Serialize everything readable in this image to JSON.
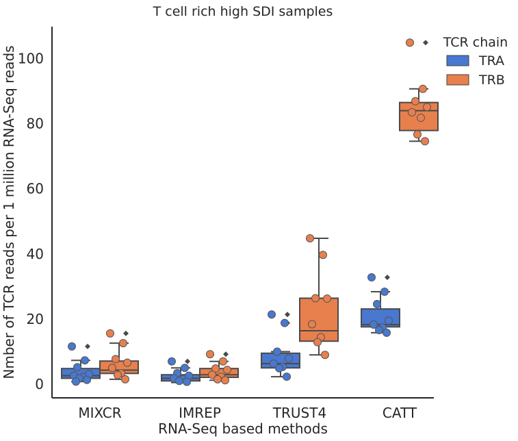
{
  "chart_data": {
    "type": "box",
    "title": "T cell rich high SDI samples",
    "xlabel": "RNA-Seq based methods",
    "ylabel": "Nmber of TCR reads per 1 million RNA-Seq reads",
    "categories": [
      "MIXCR",
      "IMREP",
      "TRUST4",
      "CATT"
    ],
    "ylim": [
      -4,
      110
    ],
    "yticks": [
      0,
      20,
      40,
      60,
      80,
      100
    ],
    "grid": false,
    "legend": {
      "title": "TCR chain",
      "position": "top-right outside"
    },
    "series": [
      {
        "name": "TRA",
        "color": "#4878cf",
        "boxes": [
          {
            "q1": 1.8,
            "median": 2.6,
            "q3": 4.8,
            "whisker_low": 0.8,
            "whisker_high": 7.3,
            "outliers": [
              11.6
            ]
          },
          {
            "q1": 1.0,
            "median": 1.8,
            "q3": 2.9,
            "whisker_low": 0.5,
            "whisker_high": 5.0,
            "outliers": [
              7.0
            ]
          },
          {
            "q1": 5.0,
            "median": 6.3,
            "q3": 9.5,
            "whisker_low": 2.3,
            "whisker_high": 10.0,
            "outliers": [
              18.8,
              21.4
            ]
          },
          {
            "q1": 17.6,
            "median": 18.3,
            "q3": 23.1,
            "whisker_low": 15.8,
            "whisker_high": 28.4,
            "outliers": [
              32.8
            ]
          }
        ],
        "points": [
          [
            11.6,
            7.3,
            5.2,
            3.1,
            2.6,
            2.2,
            1.8,
            1.3,
            0.8
          ],
          [
            7.0,
            5.0,
            3.4,
            2.6,
            1.8,
            1.5,
            1.0,
            0.7
          ],
          [
            21.4,
            18.8,
            10.0,
            7.9,
            6.3,
            5.3,
            4.9,
            2.3
          ],
          [
            32.8,
            28.4,
            24.6,
            19.5,
            18.3,
            17.4,
            16.6,
            15.8
          ]
        ]
      },
      {
        "name": "TRB",
        "color": "#e8804d",
        "boxes": [
          {
            "q1": 3.3,
            "median": 4.3,
            "q3": 7.1,
            "whisker_low": 1.5,
            "whisker_high": 12.6,
            "outliers": [
              15.6
            ]
          },
          {
            "q1": 2.1,
            "median": 2.9,
            "q3": 4.8,
            "whisker_low": 1.2,
            "whisker_high": 7.0,
            "outliers": [
              9.2
            ]
          },
          {
            "q1": 13.2,
            "median": 16.4,
            "q3": 26.4,
            "whisker_low": 9.0,
            "whisker_high": 44.8,
            "outliers": []
          },
          {
            "q1": 77.9,
            "median": 84.0,
            "q3": 86.5,
            "whisker_low": 74.6,
            "whisker_high": 90.7,
            "outliers": [
              104.9
            ]
          }
        ],
        "points": [
          [
            15.6,
            12.6,
            7.7,
            6.6,
            5.0,
            3.3,
            2.8,
            1.5
          ],
          [
            9.2,
            7.0,
            4.8,
            4.4,
            2.9,
            2.3,
            1.5,
            1.2
          ],
          [
            44.8,
            39.7,
            26.4,
            26.3,
            18.4,
            14.4,
            12.9,
            9.0
          ],
          [
            104.9,
            90.7,
            86.9,
            85.1,
            83.5,
            81.8,
            76.7,
            74.6
          ]
        ]
      }
    ]
  }
}
